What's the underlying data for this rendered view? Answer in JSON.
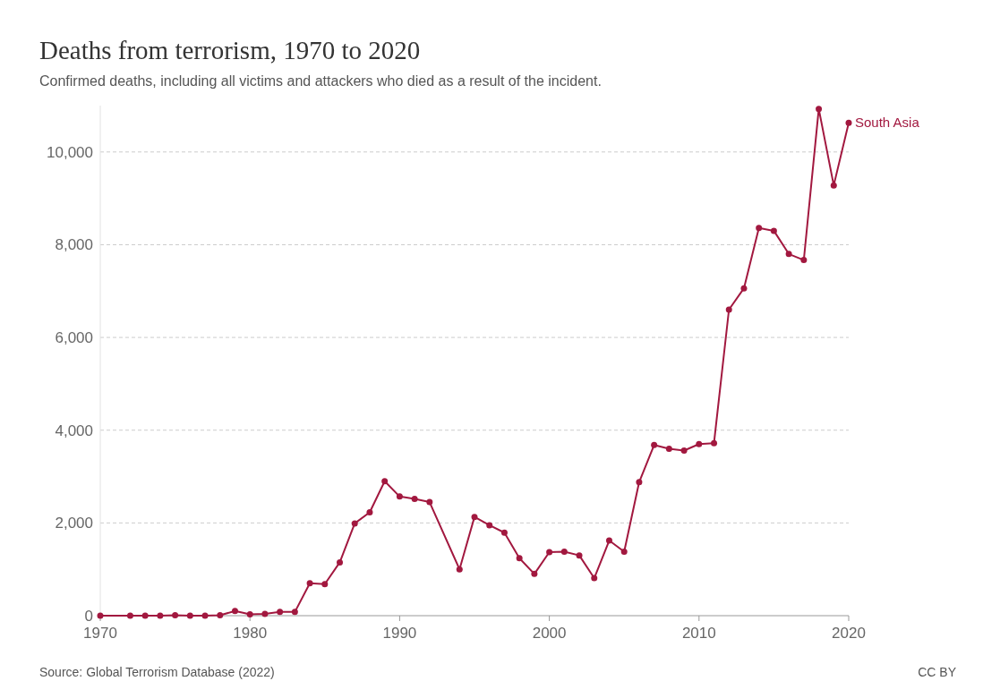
{
  "chart_data": {
    "type": "line",
    "title": "Deaths from terrorism, 1970 to 2020",
    "subtitle": "Confirmed deaths, including all victims and attackers who died as a result of the incident.",
    "x": [
      1970,
      1972,
      1973,
      1974,
      1975,
      1976,
      1977,
      1978,
      1979,
      1980,
      1981,
      1982,
      1983,
      1984,
      1985,
      1986,
      1987,
      1988,
      1989,
      1990,
      1991,
      1992,
      1994,
      1995,
      1996,
      1997,
      1998,
      1999,
      2000,
      2001,
      2002,
      2003,
      2004,
      2005,
      2006,
      2007,
      2008,
      2009,
      2010,
      2011,
      2012,
      2013,
      2014,
      2015,
      2016,
      2017,
      2018,
      2019,
      2020
    ],
    "series": [
      {
        "name": "South Asia",
        "color": "#a2183f",
        "values": [
          0,
          0,
          0,
          0,
          10,
          0,
          0,
          10,
          100,
          30,
          40,
          80,
          80,
          700,
          680,
          1150,
          1990,
          2230,
          2900,
          2570,
          2520,
          2450,
          1000,
          2130,
          1950,
          1790,
          1240,
          900,
          1370,
          1380,
          1300,
          810,
          1620,
          1380,
          2880,
          3680,
          3600,
          3560,
          3700,
          3720,
          6600,
          7060,
          8360,
          8300,
          7800,
          7670,
          10930,
          9280,
          10630
        ]
      }
    ],
    "xlim": [
      1970,
      2020
    ],
    "xticks": [
      1970,
      1980,
      1990,
      2000,
      2010,
      2020
    ],
    "ylim": [
      0,
      11000
    ],
    "yticks": [
      0,
      {
        "value": 2000,
        "label": "2,000"
      },
      {
        "value": 4000,
        "label": "4,000"
      },
      {
        "value": 6000,
        "label": "6,000"
      },
      {
        "value": 8000,
        "label": "8,000"
      },
      {
        "value": 10000,
        "label": "10,000"
      }
    ],
    "grid": "y",
    "marker": "circle",
    "line_style": "solid",
    "legend": false,
    "annotations": [
      "Source: Global Terrorism Database (2022)",
      "CC BY"
    ]
  }
}
